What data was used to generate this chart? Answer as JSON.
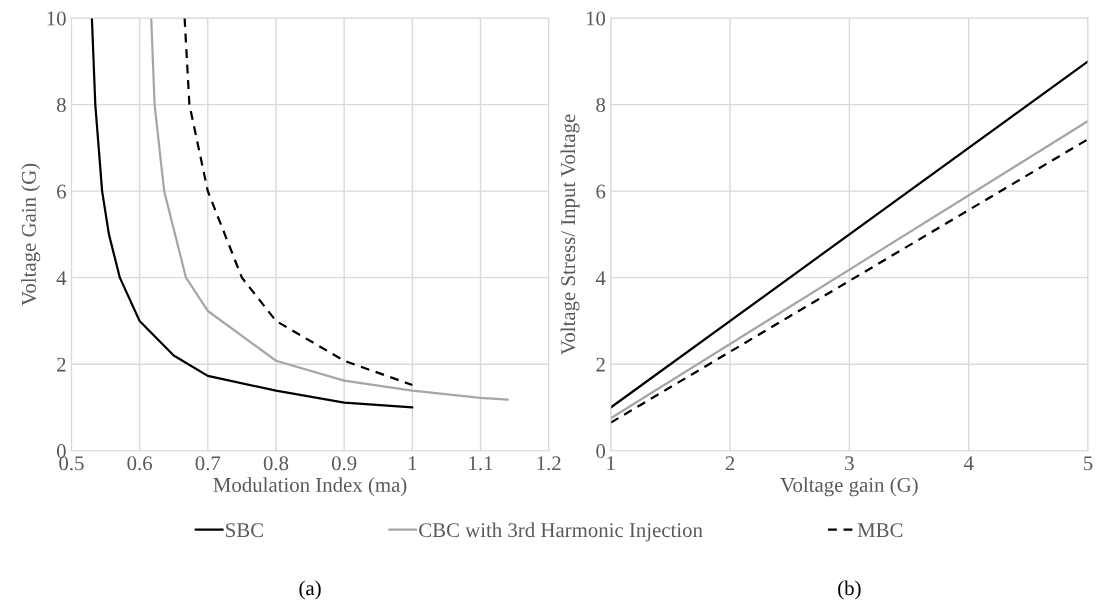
{
  "chart_data": [
    {
      "type": "line",
      "xlabel": "Modulation Index (ma)",
      "ylabel": "Voltage Gain (G)",
      "xlim": [
        0.5,
        1.2
      ],
      "xticks": [
        0.5,
        0.6,
        0.7,
        0.8,
        0.9,
        {
          "value": 1.0,
          "label": "1"
        },
        1.1,
        1.2
      ],
      "ylim": [
        0,
        10
      ],
      "yticks": [
        0,
        2,
        4,
        6,
        8,
        10
      ],
      "grid": true,
      "legend": "bottom",
      "annotations": [
        "(a)"
      ],
      "series": [
        {
          "name": "SBC",
          "color": "#000000",
          "line_style": "solid",
          "x": [
            0.53,
            0.535,
            0.545,
            0.555,
            0.571,
            0.6,
            0.65,
            0.7,
            0.8,
            0.9,
            1.0
          ],
          "values": [
            10,
            8,
            6,
            5,
            4,
            3,
            2.2,
            1.73,
            1.39,
            1.11,
            1.0
          ]
        },
        {
          "name": "CBC with 3rd Harmonic Injection",
          "color": "#a6a6a6",
          "line_style": "solid",
          "x": [
            0.617,
            0.622,
            0.636,
            0.668,
            0.7,
            0.8,
            0.9,
            1.0,
            1.1,
            1.14
          ],
          "values": [
            10,
            8,
            6,
            4,
            3.23,
            2.08,
            1.62,
            1.39,
            1.22,
            1.18
          ]
        },
        {
          "name": "MBC",
          "color": "#000000",
          "line_style": "dashed",
          "x": [
            0.666,
            0.673,
            0.7,
            0.75,
            0.8,
            0.9,
            1.0
          ],
          "values": [
            10,
            8,
            6,
            4,
            3.0,
            2.08,
            1.52
          ]
        }
      ]
    },
    {
      "type": "line",
      "xlabel": "Voltage gain (G)",
      "ylabel": "Voltage Stress/ Input Voltage",
      "xlim": [
        1,
        5
      ],
      "xticks": [
        1,
        2,
        3,
        4,
        5
      ],
      "ylim": [
        0,
        10
      ],
      "yticks": [
        0,
        2,
        4,
        6,
        8,
        10
      ],
      "grid": true,
      "annotations": [
        "(b)"
      ],
      "series": [
        {
          "color": "#000000",
          "line_style": "solid",
          "x": [
            1,
            5
          ],
          "values": [
            1,
            9
          ]
        },
        {
          "color": "#a6a6a6",
          "line_style": "solid",
          "x": [
            1,
            5
          ],
          "values": [
            0.75,
            7.62
          ]
        },
        {
          "color": "#000000",
          "line_style": "dashed",
          "x": [
            1,
            5
          ],
          "values": [
            0.65,
            7.2
          ]
        }
      ]
    }
  ]
}
